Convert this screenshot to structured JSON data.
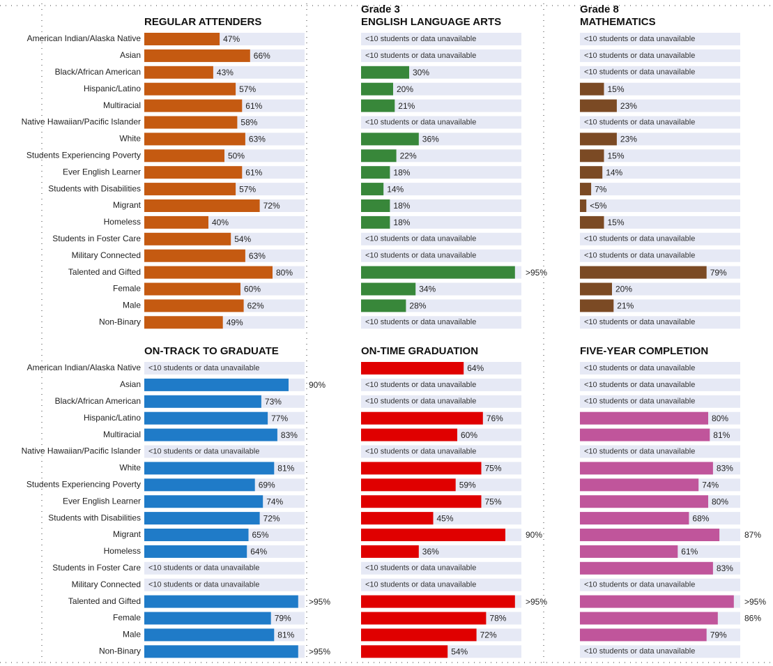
{
  "chart_data": [
    {
      "type": "bar",
      "title": "REGULAR ATTENDERS",
      "color": "#c55a11",
      "xlim": [
        0,
        100
      ],
      "categories": [
        "American Indian/Alaska Native",
        "Asian",
        "Black/African American",
        "Hispanic/Latino",
        "Multiracial",
        "Native Hawaiian/Pacific Islander",
        "White",
        "Students Experiencing Poverty",
        "Ever English Learner",
        "Students with Disabilities",
        "Migrant",
        "Homeless",
        "Students in Foster Care",
        "Military Connected",
        "Talented and Gifted",
        "Female",
        "Male",
        "Non-Binary"
      ],
      "values": [
        47,
        66,
        43,
        57,
        61,
        58,
        63,
        50,
        61,
        57,
        72,
        40,
        54,
        63,
        80,
        60,
        62,
        49
      ],
      "value_labels": [
        "47%",
        "66%",
        "43%",
        "57%",
        "61%",
        "58%",
        "63%",
        "50%",
        "61%",
        "57%",
        "72%",
        "40%",
        "54%",
        "63%",
        "80%",
        "60%",
        "62%",
        "49%"
      ]
    },
    {
      "type": "bar",
      "subtitle": "Grade 3",
      "title": "ENGLISH LANGUAGE ARTS",
      "color": "#38873a",
      "xlim": [
        0,
        100
      ],
      "values": [
        null,
        null,
        30,
        20,
        21,
        null,
        36,
        22,
        18,
        14,
        18,
        18,
        null,
        null,
        96,
        34,
        28,
        null
      ],
      "value_labels": [
        "<10 students or data unavailable",
        "<10 students or data unavailable",
        "30%",
        "20%",
        "21%",
        "<10 students or data unavailable",
        "36%",
        "22%",
        "18%",
        "14%",
        "18%",
        "18%",
        "<10 students or data unavailable",
        "<10 students or data unavailable",
        ">95%",
        "34%",
        "28%",
        "<10 students or data unavailable"
      ]
    },
    {
      "type": "bar",
      "subtitle": "Grade 8",
      "title": "MATHEMATICS",
      "color": "#7b4a24",
      "xlim": [
        0,
        100
      ],
      "values": [
        null,
        null,
        null,
        15,
        23,
        null,
        23,
        15,
        14,
        7,
        4,
        15,
        null,
        null,
        79,
        20,
        21,
        null
      ],
      "value_labels": [
        "<10 students or data unavailable",
        "<10 students or data unavailable",
        "<10 students or data unavailable",
        "15%",
        "23%",
        "<10 students or data unavailable",
        "23%",
        "15%",
        "14%",
        "7%",
        "<5%",
        "15%",
        "<10 students or data unavailable",
        "<10 students or data unavailable",
        "79%",
        "20%",
        "21%",
        "<10 students or data unavailable"
      ]
    },
    {
      "type": "bar",
      "title": "ON-TRACK TO GRADUATE",
      "color": "#1f7bc8",
      "xlim": [
        0,
        100
      ],
      "categories": [
        "American Indian/Alaska Native",
        "Asian",
        "Black/African American",
        "Hispanic/Latino",
        "Multiracial",
        "Native Hawaiian/Pacific Islander",
        "White",
        "Students Experiencing Poverty",
        "Ever English Learner",
        "Students with Disabilities",
        "Migrant",
        "Homeless",
        "Students in Foster Care",
        "Military Connected",
        "Talented and Gifted",
        "Female",
        "Male",
        "Non-Binary"
      ],
      "values": [
        null,
        90,
        73,
        77,
        83,
        null,
        81,
        69,
        74,
        72,
        65,
        64,
        null,
        null,
        96,
        79,
        81,
        96
      ],
      "value_labels": [
        "<10 students or data unavailable",
        "90%",
        "73%",
        "77%",
        "83%",
        "<10 students or data unavailable",
        "81%",
        "69%",
        "74%",
        "72%",
        "65%",
        "64%",
        "<10 students or data unavailable",
        "<10 students or data unavailable",
        ">95%",
        "79%",
        "81%",
        ">95%"
      ]
    },
    {
      "type": "bar",
      "title": "ON-TIME GRADUATION",
      "color": "#e00000",
      "xlim": [
        0,
        100
      ],
      "values": [
        64,
        null,
        null,
        76,
        60,
        null,
        75,
        59,
        75,
        45,
        90,
        36,
        null,
        null,
        96,
        78,
        72,
        54
      ],
      "value_labels": [
        "64%",
        "<10 students or data unavailable",
        "<10 students or data unavailable",
        "76%",
        "60%",
        "<10 students or data unavailable",
        "75%",
        "59%",
        "75%",
        "45%",
        "90%",
        "36%",
        "<10 students or data unavailable",
        "<10 students or data unavailable",
        ">95%",
        "78%",
        "72%",
        "54%"
      ]
    },
    {
      "type": "bar",
      "title": "FIVE-YEAR COMPLETION",
      "color": "#c0559b",
      "xlim": [
        0,
        100
      ],
      "values": [
        null,
        null,
        null,
        80,
        81,
        null,
        83,
        74,
        80,
        68,
        87,
        61,
        83,
        null,
        96,
        86,
        79,
        null
      ],
      "value_labels": [
        "<10 students or data unavailable",
        "<10 students or data unavailable",
        "<10 students or data unavailable",
        "80%",
        "81%",
        "<10 students or data unavailable",
        "83%",
        "74%",
        "80%",
        "68%",
        "87%",
        "61%",
        "83%",
        "<10 students or data unavailable",
        ">95%",
        "86%",
        "79%",
        "<10 students or data unavailable"
      ]
    }
  ]
}
